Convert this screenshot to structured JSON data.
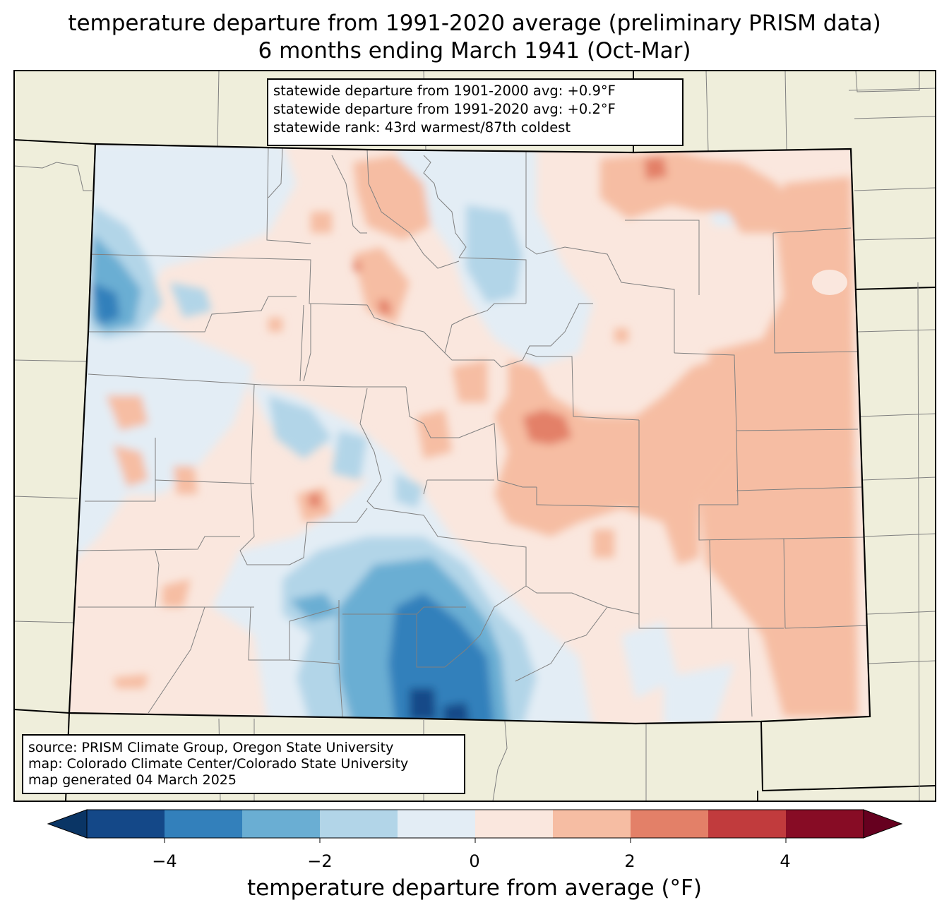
{
  "title": {
    "line1": "temperature departure from 1991-2020 average (preliminary PRISM data)",
    "line2": "6 months ending March 1941 (Oct-Mar)"
  },
  "stats": {
    "line1": "statewide departure from 1901-2000 avg: +0.9°F",
    "line2": "statewide departure from 1991-2020 avg: +0.2°F",
    "line3": "statewide rank: 43rd warmest/87th coldest"
  },
  "source": {
    "line1": "source: PRISM Climate Group, Oregon State University",
    "line2": "map: Colorado Climate Center/Colorado State University",
    "line3": "map generated 04 March 2025"
  },
  "colorbar": {
    "label": "temperature departure from average (°F)",
    "ticks": [
      "−4",
      "−2",
      "0",
      "2",
      "4"
    ],
    "bins": [
      {
        "range": "-5 to -4",
        "color": "#144888"
      },
      {
        "range": "-4 to -3",
        "color": "#3380bb"
      },
      {
        "range": "-3 to -2",
        "color": "#6aaed3"
      },
      {
        "range": "-2 to -1",
        "color": "#b2d5e8"
      },
      {
        "range": "-1 to 0",
        "color": "#e3edf5"
      },
      {
        "range": "0 to 1",
        "color": "#fae7de"
      },
      {
        "range": "1 to 2",
        "color": "#f6bda3"
      },
      {
        "range": "2 to 3",
        "color": "#e38068"
      },
      {
        "range": "3 to 4",
        "color": "#c13b3d"
      },
      {
        "range": "4 to 5",
        "color": "#870c25"
      }
    ],
    "under_color": "#0a3565",
    "over_color": "#66001f"
  },
  "colors": {
    "land_outside": "#efeedb",
    "state_border": "#000000",
    "county_border": "#808080"
  }
}
